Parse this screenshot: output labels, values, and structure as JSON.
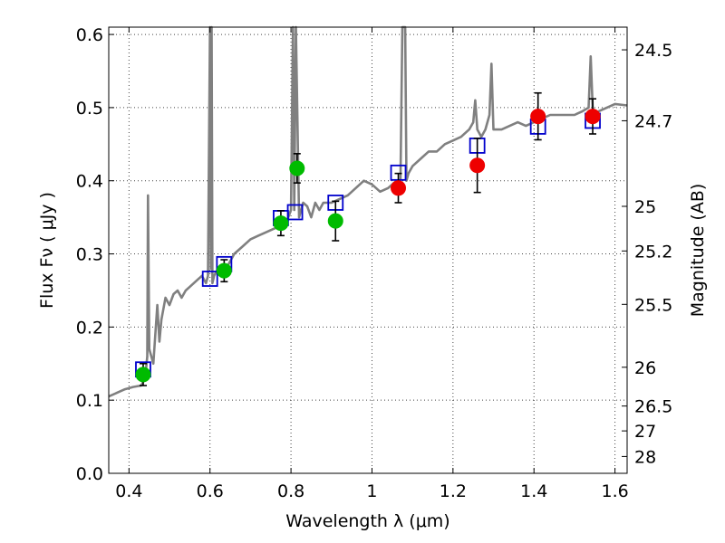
{
  "chart_data": {
    "type": "scatter",
    "title": "",
    "xlabel": "Wavelength  λ (μm)",
    "ylabel": "Flux  Fν  ( μJy )",
    "ylabel_right": "Magnitude (AB)",
    "xlim": [
      0.35,
      1.63
    ],
    "ylim": [
      0.0,
      0.61
    ],
    "grid": true,
    "xticks": [
      0.4,
      0.6,
      0.8,
      1.0,
      1.2,
      1.4,
      1.6
    ],
    "xtick_labels": [
      "0.4",
      "0.6",
      "0.8",
      "1",
      "1.2",
      "1.4",
      "1.6"
    ],
    "yticks": [
      0.0,
      0.1,
      0.2,
      0.3,
      0.4,
      0.5,
      0.6
    ],
    "ytick_labels": [
      "0.0",
      "0.1",
      "0.2",
      "0.3",
      "0.4",
      "0.5",
      "0.6"
    ],
    "right_ticks": [
      {
        "label": "24.5",
        "flux": 0.579
      },
      {
        "label": "24.7",
        "flux": 0.482
      },
      {
        "label": "25",
        "flux": 0.365
      },
      {
        "label": "25.2",
        "flux": 0.304
      },
      {
        "label": "25.5",
        "flux": 0.231
      },
      {
        "label": "26",
        "flux": 0.145
      },
      {
        "label": "26.5",
        "flux": 0.092
      },
      {
        "label": "27",
        "flux": 0.058
      },
      {
        "label": "28",
        "flux": 0.023
      }
    ],
    "colors": {
      "spectrum": "#808080",
      "green": "#00bb00",
      "red": "#ee0000",
      "box": "#0000cc",
      "errorbar": "#000000",
      "grid": "#444444"
    },
    "series": [
      {
        "name": "model spectrum",
        "kind": "line",
        "x": [
          0.35,
          0.37,
          0.39,
          0.41,
          0.43,
          0.44,
          0.445,
          0.447,
          0.45,
          0.46,
          0.47,
          0.475,
          0.48,
          0.49,
          0.5,
          0.51,
          0.52,
          0.53,
          0.54,
          0.55,
          0.56,
          0.57,
          0.58,
          0.59,
          0.595,
          0.6,
          0.602,
          0.604,
          0.606,
          0.61,
          0.62,
          0.63,
          0.64,
          0.66,
          0.68,
          0.7,
          0.72,
          0.74,
          0.76,
          0.78,
          0.79,
          0.8,
          0.805,
          0.808,
          0.812,
          0.82,
          0.83,
          0.84,
          0.85,
          0.86,
          0.87,
          0.88,
          0.9,
          0.92,
          0.94,
          0.96,
          0.98,
          1.0,
          1.02,
          1.04,
          1.06,
          1.07,
          1.075,
          1.078,
          1.082,
          1.085,
          1.09,
          1.1,
          1.12,
          1.14,
          1.16,
          1.18,
          1.2,
          1.22,
          1.24,
          1.25,
          1.255,
          1.26,
          1.27,
          1.28,
          1.29,
          1.295,
          1.3,
          1.32,
          1.34,
          1.36,
          1.38,
          1.4,
          1.42,
          1.44,
          1.46,
          1.48,
          1.5,
          1.52,
          1.535,
          1.54,
          1.545,
          1.55,
          1.56,
          1.58,
          1.6,
          1.63
        ],
        "y": [
          0.105,
          0.11,
          0.115,
          0.118,
          0.12,
          0.13,
          0.16,
          0.38,
          0.17,
          0.15,
          0.23,
          0.18,
          0.21,
          0.24,
          0.23,
          0.245,
          0.25,
          0.24,
          0.25,
          0.255,
          0.26,
          0.265,
          0.27,
          0.26,
          0.27,
          0.62,
          0.28,
          0.62,
          0.26,
          0.27,
          0.28,
          0.285,
          0.28,
          0.3,
          0.31,
          0.32,
          0.325,
          0.33,
          0.335,
          0.34,
          0.345,
          0.36,
          0.62,
          0.36,
          0.62,
          0.35,
          0.37,
          0.365,
          0.35,
          0.37,
          0.36,
          0.37,
          0.37,
          0.375,
          0.38,
          0.39,
          0.4,
          0.395,
          0.385,
          0.39,
          0.4,
          0.39,
          0.62,
          0.62,
          0.62,
          0.4,
          0.41,
          0.42,
          0.43,
          0.44,
          0.44,
          0.45,
          0.455,
          0.46,
          0.47,
          0.48,
          0.51,
          0.47,
          0.46,
          0.47,
          0.49,
          0.56,
          0.47,
          0.47,
          0.475,
          0.48,
          0.475,
          0.48,
          0.485,
          0.49,
          0.49,
          0.49,
          0.49,
          0.495,
          0.5,
          0.57,
          0.5,
          0.49,
          0.495,
          0.5,
          0.505,
          0.503
        ]
      },
      {
        "name": "model photometry",
        "kind": "open-square",
        "x": [
          0.435,
          0.6,
          0.635,
          0.775,
          0.81,
          0.91,
          1.065,
          1.26,
          1.41,
          1.545
        ],
        "y": [
          0.142,
          0.266,
          0.286,
          0.349,
          0.357,
          0.37,
          0.411,
          0.448,
          0.474,
          0.482
        ]
      },
      {
        "name": "green photometry",
        "kind": "filled-circle",
        "x": [
          0.435,
          0.635,
          0.775,
          0.815,
          0.91
        ],
        "y": [
          0.135,
          0.277,
          0.342,
          0.417,
          0.345
        ],
        "yerr": [
          0.015,
          0.015,
          0.017,
          0.02,
          0.027
        ]
      },
      {
        "name": "red photometry",
        "kind": "filled-circle",
        "x": [
          1.065,
          1.26,
          1.41,
          1.545
        ],
        "y": [
          0.39,
          0.421,
          0.488,
          0.488
        ],
        "yerr": [
          0.02,
          0.037,
          0.032,
          0.024
        ]
      }
    ]
  }
}
